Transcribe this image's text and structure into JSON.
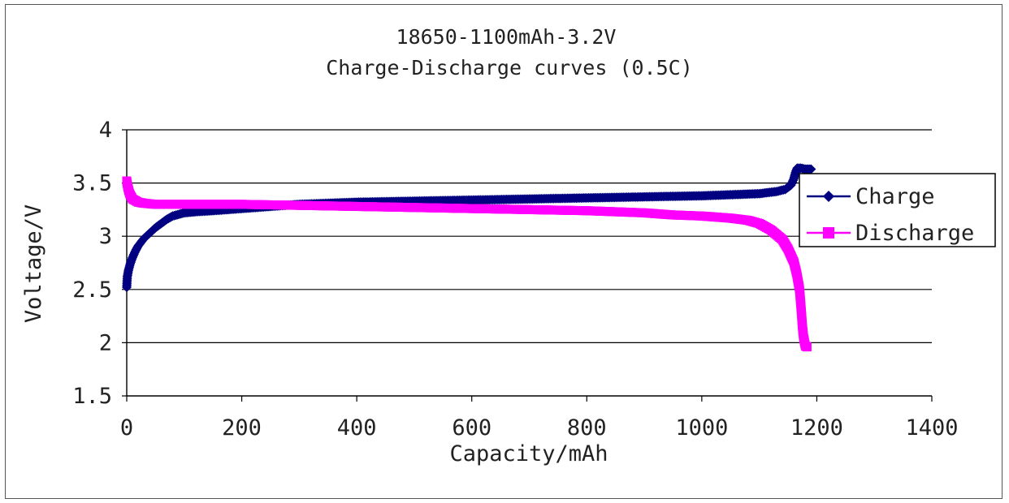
{
  "chart_data": {
    "type": "line",
    "title": "18650-1100mAh-3.2V",
    "subtitle": "Charge-Discharge curves (0.5C)",
    "xlabel": "Capacity/mAh",
    "ylabel": "Voltage/V",
    "xlim": [
      0,
      1400
    ],
    "ylim": [
      1.5,
      4
    ],
    "xticks": [
      "0",
      "200",
      "400",
      "600",
      "800",
      "1000",
      "1200",
      "1400"
    ],
    "yticks": [
      "1.5",
      "2",
      "2.5",
      "3",
      "3.5",
      "4"
    ],
    "grid": "horizontal",
    "legend_position": "right",
    "series": [
      {
        "name": "Charge",
        "color": "#000080",
        "marker": "diamond",
        "points": [
          [
            0,
            2.52
          ],
          [
            1,
            2.62
          ],
          [
            3,
            2.68
          ],
          [
            6,
            2.74
          ],
          [
            10,
            2.8
          ],
          [
            15,
            2.86
          ],
          [
            20,
            2.91
          ],
          [
            30,
            2.98
          ],
          [
            40,
            3.03
          ],
          [
            50,
            3.08
          ],
          [
            60,
            3.12
          ],
          [
            70,
            3.16
          ],
          [
            80,
            3.19
          ],
          [
            100,
            3.22
          ],
          [
            120,
            3.23
          ],
          [
            150,
            3.24
          ],
          [
            200,
            3.26
          ],
          [
            250,
            3.28
          ],
          [
            300,
            3.3
          ],
          [
            400,
            3.32
          ],
          [
            500,
            3.33
          ],
          [
            600,
            3.34
          ],
          [
            700,
            3.35
          ],
          [
            800,
            3.36
          ],
          [
            900,
            3.37
          ],
          [
            1000,
            3.38
          ],
          [
            1050,
            3.39
          ],
          [
            1100,
            3.4
          ],
          [
            1130,
            3.42
          ],
          [
            1145,
            3.44
          ],
          [
            1155,
            3.48
          ],
          [
            1160,
            3.54
          ],
          [
            1163,
            3.6
          ],
          [
            1166,
            3.64
          ],
          [
            1172,
            3.64
          ],
          [
            1180,
            3.63
          ],
          [
            1190,
            3.63
          ]
        ]
      },
      {
        "name": "Discharge",
        "color": "#FF00FF",
        "marker": "square",
        "points": [
          [
            0,
            3.52
          ],
          [
            2,
            3.46
          ],
          [
            5,
            3.4
          ],
          [
            10,
            3.35
          ],
          [
            20,
            3.32
          ],
          [
            30,
            3.31
          ],
          [
            50,
            3.3
          ],
          [
            100,
            3.3
          ],
          [
            200,
            3.3
          ],
          [
            300,
            3.29
          ],
          [
            400,
            3.28
          ],
          [
            500,
            3.27
          ],
          [
            600,
            3.26
          ],
          [
            700,
            3.25
          ],
          [
            800,
            3.24
          ],
          [
            900,
            3.22
          ],
          [
            950,
            3.2
          ],
          [
            1000,
            3.19
          ],
          [
            1050,
            3.17
          ],
          [
            1080,
            3.15
          ],
          [
            1100,
            3.12
          ],
          [
            1120,
            3.06
          ],
          [
            1140,
            2.97
          ],
          [
            1150,
            2.88
          ],
          [
            1160,
            2.76
          ],
          [
            1165,
            2.65
          ],
          [
            1170,
            2.5
          ],
          [
            1173,
            2.3
          ],
          [
            1175,
            2.15
          ],
          [
            1177,
            2.05
          ],
          [
            1180,
            1.97
          ],
          [
            1183,
            1.96
          ]
        ]
      }
    ]
  }
}
